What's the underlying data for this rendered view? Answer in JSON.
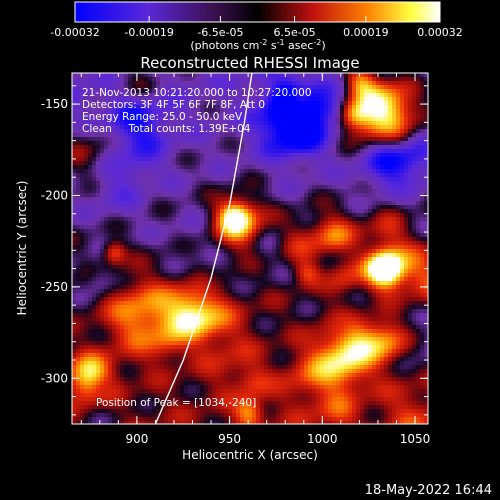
{
  "chart_data": {
    "type": "heatmap",
    "title": "Reconstructed RHESSI Image",
    "xlabel": "Heliocentric X (arcsec)",
    "ylabel": "Heliocentric Y (arcsec)",
    "xlim": [
      865,
      1057
    ],
    "ylim": [
      -325,
      -133
    ],
    "x_ticks": [
      "900",
      "950",
      "1000",
      "1050"
    ],
    "x_tick_values": [
      900,
      950,
      1000,
      1050
    ],
    "y_ticks": [
      "-150",
      "-200",
      "-250",
      "-300"
    ],
    "y_tick_values": [
      -150,
      -200,
      -250,
      -300
    ],
    "colorbar": {
      "ticks": [
        "-0.00032",
        "-0.00019",
        "-6.5e-05",
        "6.5e-05",
        "0.00019",
        "0.00032"
      ],
      "tick_values": [
        -0.00032,
        -0.00019,
        -6.5e-05,
        6.5e-05,
        0.00019,
        0.00032
      ],
      "range": [
        -0.00032,
        0.00032
      ],
      "colormap": "blue-purple-black-red-yellow-white"
    },
    "colorbar_units": "(photons cm⁻² s⁻¹ asec⁻²)",
    "annotations": [
      "21-Nov-2013 10:21:20.000 to 10:27:20.000",
      "Detectors: 3F 4F 5F 6F 7F 8F, Att 0",
      "Energy Range: 25.0 - 50.0 keV",
      "Clean     Total counts: 1.39E+04"
    ],
    "peak_label": "Position of Peak = [1034,-240]",
    "limb_curve": [
      [
        910,
        -325
      ],
      [
        925,
        -290
      ],
      [
        940,
        -245
      ],
      [
        950,
        -205
      ],
      [
        958,
        -160
      ],
      [
        962,
        -133
      ]
    ],
    "grid": false,
    "legend": "none"
  },
  "timestamp": "18-May-2022 16:44",
  "colors": {
    "background": "#000000",
    "text": "#ffffff",
    "colormap_stops": [
      "#0000ff",
      "#6a32c8",
      "#000000",
      "#d01010",
      "#ff9000",
      "#ffff40",
      "#ffffff"
    ]
  }
}
